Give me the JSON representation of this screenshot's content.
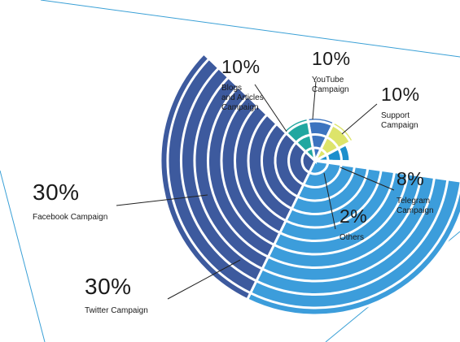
{
  "chart_data": {
    "type": "pie",
    "title": "",
    "slices": [
      {
        "label": "YouTube Campaign",
        "display_label": "YouTube\nCampaign",
        "value": 10,
        "value_label": "10%",
        "color": "#3c74bf"
      },
      {
        "label": "Support Campaign",
        "display_label": "Support\nCampaign",
        "value": 10,
        "value_label": "10%",
        "color": "#dde46a"
      },
      {
        "label": "Telegram Campaign",
        "display_label": "Telegram\nCampaign",
        "value": 8,
        "value_label": "8%",
        "color": "#1c8fcc"
      },
      {
        "label": "Others",
        "display_label": "Others",
        "value": 2,
        "value_label": "2%",
        "color": "#8cc63f"
      },
      {
        "label": "Twitter Campaign",
        "display_label": "Twitter Campaign",
        "value": 30,
        "value_label": "30%",
        "color": "#3c9ddb"
      },
      {
        "label": "Facebook Campaign",
        "display_label": "Facebook Campaign",
        "value": 30,
        "value_label": "30%",
        "color": "#3d5a9e"
      },
      {
        "label": "Blogs and Articles Campaign",
        "display_label": "Blogs\nand Articles\nCampaign",
        "value": 10,
        "value_label": "10%",
        "color": "#20a7a0"
      }
    ],
    "legend": "none (callout labels)",
    "encoding": "polar area: slice radius grows with value"
  }
}
